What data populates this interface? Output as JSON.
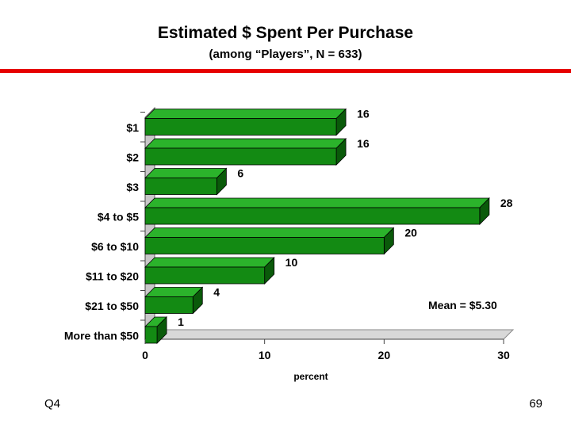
{
  "title": "Estimated $ Spent Per Purchase",
  "subtitle": "(among “Players”, N = 633)",
  "footer": {
    "left": "Q4",
    "right": "69"
  },
  "colors": {
    "bar_front": "#138a13",
    "bar_top": "#2bb32b",
    "bar_side": "#0a5a0a",
    "accent_rule": "#e60000"
  },
  "chart_data": {
    "type": "bar",
    "orientation": "horizontal",
    "categories": [
      "$1",
      "$2",
      "$3",
      "$4 to $5",
      "$6 to $10",
      "$11 to $20",
      "$21 to $50",
      "More than $50"
    ],
    "values": [
      16,
      16,
      6,
      28,
      20,
      10,
      4,
      1
    ],
    "xlabel": "percent",
    "xlim": [
      0,
      30
    ],
    "xticks": [
      "0",
      "10",
      "20",
      "30"
    ],
    "annotation": "Mean = $5.30",
    "grid": false
  }
}
